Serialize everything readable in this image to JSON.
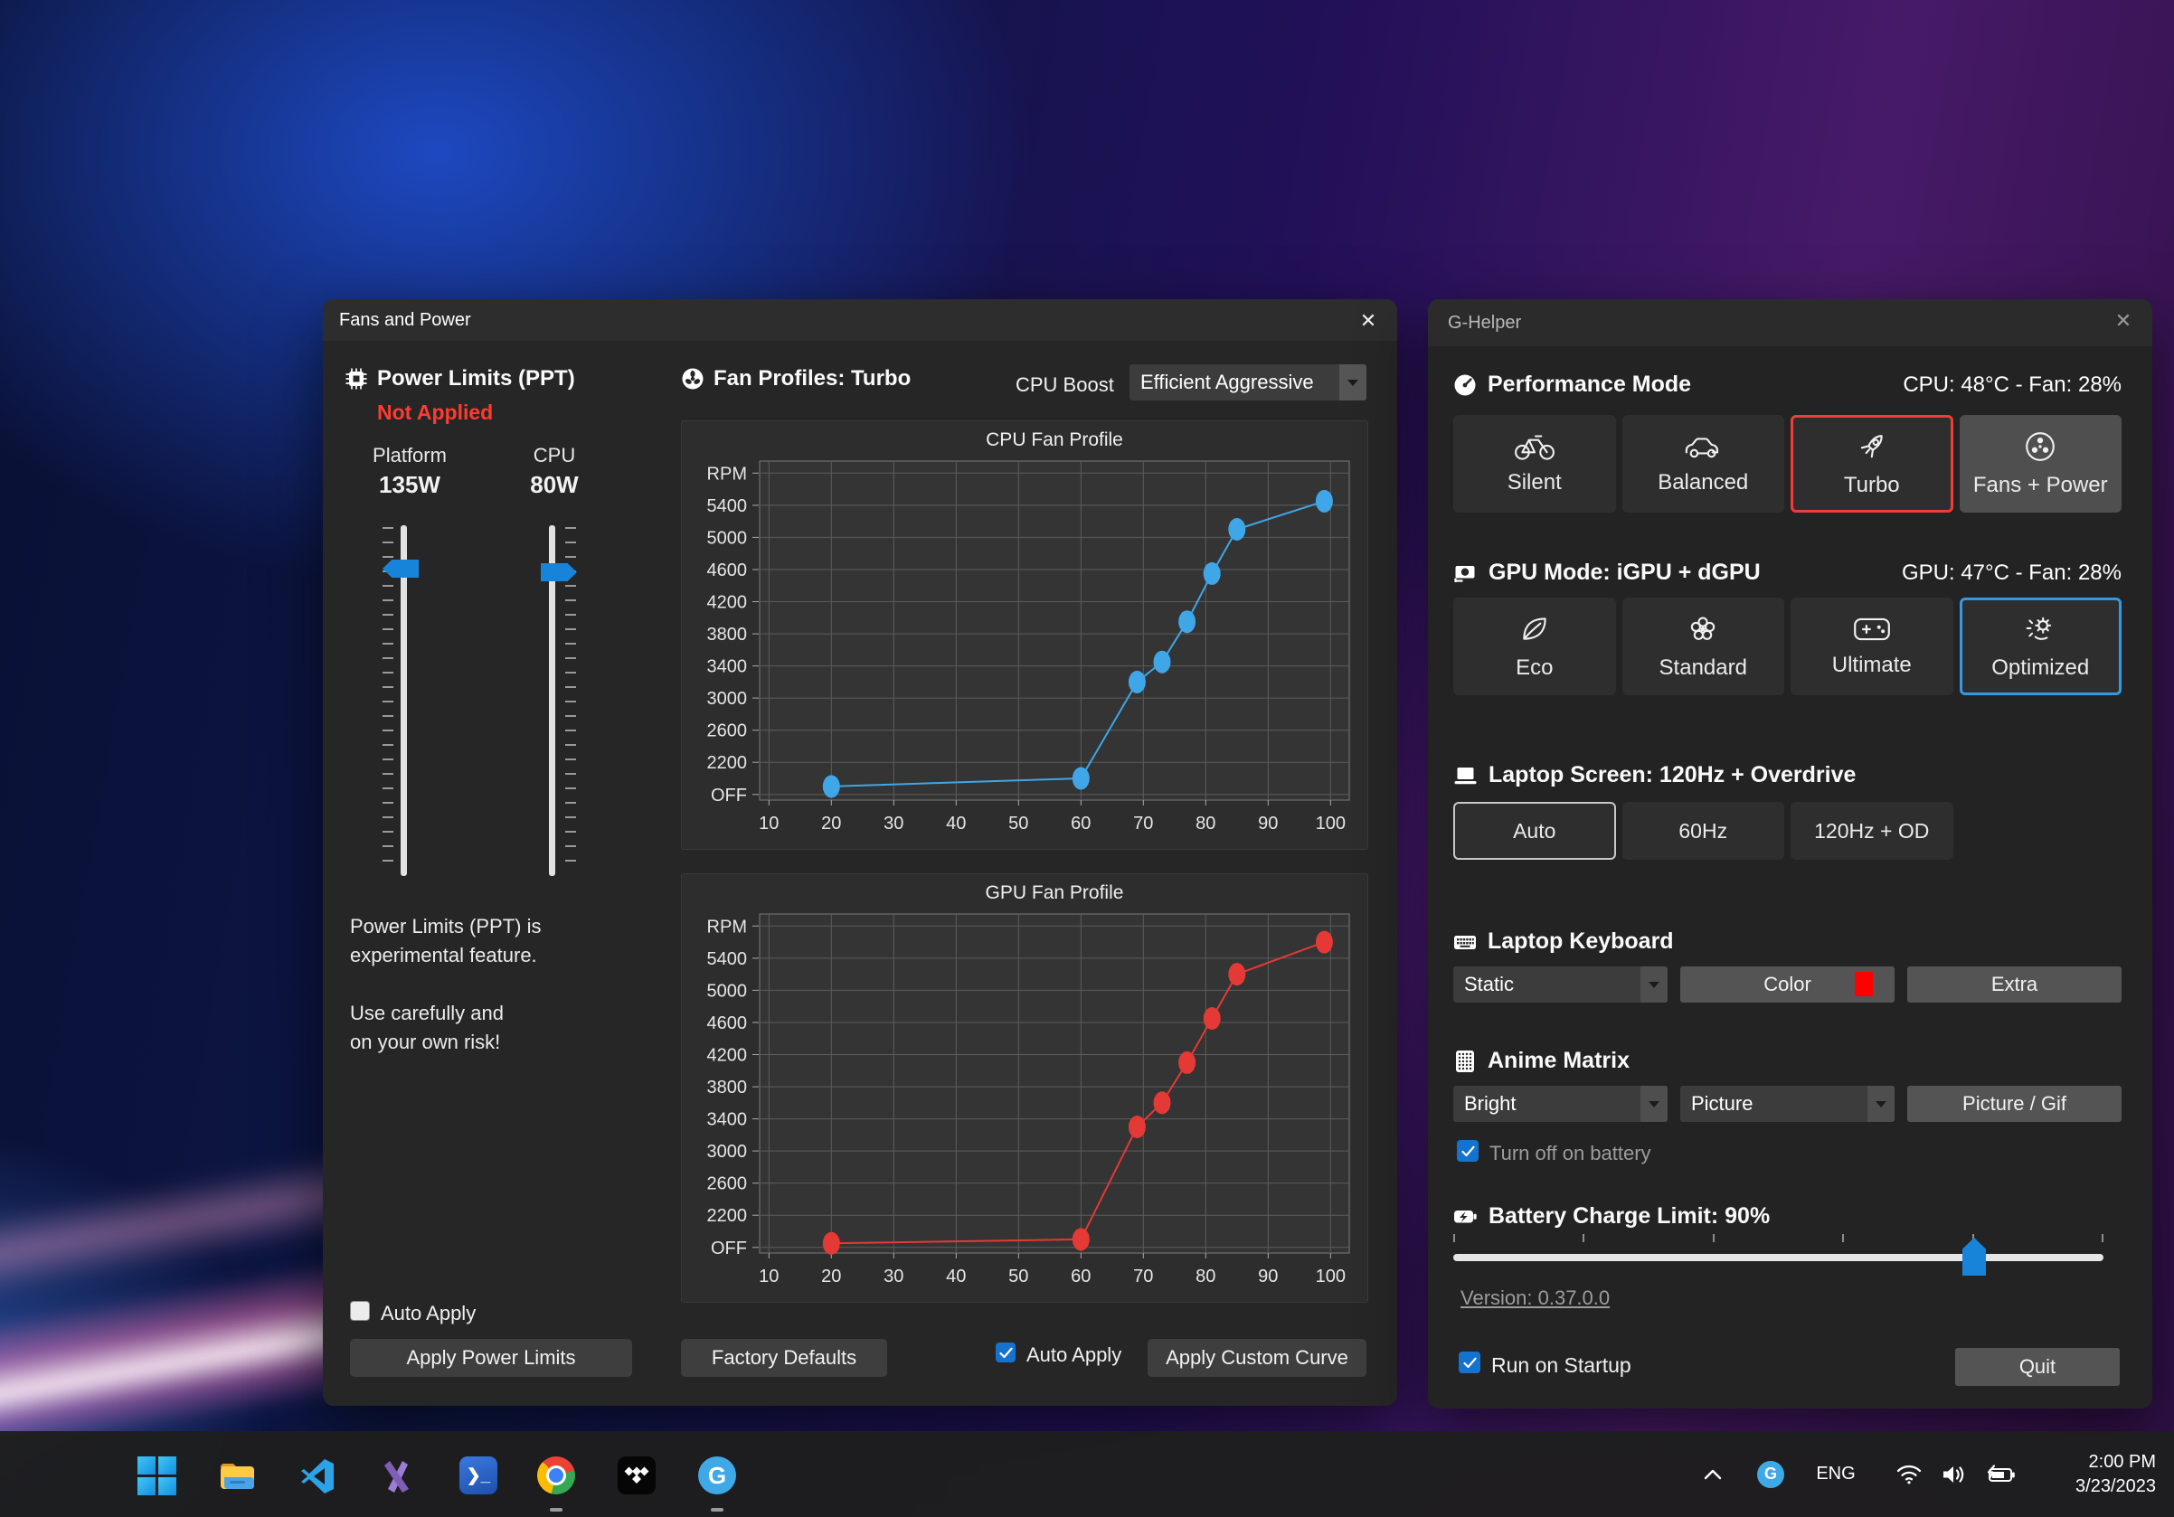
{
  "fans_window": {
    "title": "Fans and Power",
    "close_glyph": "✕",
    "power_limits": {
      "heading": "Power Limits (PPT)",
      "status": "Not Applied",
      "sliders": [
        {
          "label": "Platform",
          "value": "135W"
        },
        {
          "label": "CPU",
          "value": "80W"
        }
      ],
      "note": [
        "Power Limits (PPT) is",
        "experimental feature.",
        "",
        "Use carefully and",
        "on your own risk!"
      ],
      "auto_apply_label": "Auto Apply",
      "apply_button": "Apply Power Limits"
    },
    "fan_profiles": {
      "heading": "Fan Profiles: Turbo",
      "cpu_boost_label": "CPU Boost",
      "cpu_boost_value": "Efficient Aggressive",
      "factory_defaults_button": "Factory Defaults",
      "auto_apply_label": "Auto Apply",
      "apply_curve_button": "Apply Custom Curve"
    }
  },
  "chart_data": [
    {
      "type": "line",
      "title": "CPU Fan Profile",
      "xlabel": "",
      "ylabel": "RPM",
      "x_axis": {
        "ticks": [
          10,
          20,
          30,
          40,
          50,
          60,
          70,
          80,
          90,
          100
        ],
        "min": 8.5,
        "max": 103
      },
      "y_axis": {
        "tick_labels": [
          "OFF",
          "2200",
          "2600",
          "3000",
          "3400",
          "3800",
          "4200",
          "4600",
          "5000",
          "5400",
          "RPM"
        ],
        "tick_values": [
          1800,
          2200,
          2600,
          3000,
          3400,
          3800,
          4200,
          4600,
          5000,
          5400,
          5800
        ],
        "min": 1730,
        "max": 5950
      },
      "series": [
        {
          "name": "CPU fan curve",
          "color": "#3fa6e8",
          "points": [
            [
              20,
              1900
            ],
            [
              60,
              2000
            ],
            [
              69,
              3200
            ],
            [
              73,
              3450
            ],
            [
              77,
              3950
            ],
            [
              81,
              4550
            ],
            [
              85,
              5100
            ],
            [
              99,
              5450
            ]
          ]
        }
      ]
    },
    {
      "type": "line",
      "title": "GPU Fan Profile",
      "xlabel": "",
      "ylabel": "RPM",
      "x_axis": {
        "ticks": [
          10,
          20,
          30,
          40,
          50,
          60,
          70,
          80,
          90,
          100
        ],
        "min": 8.5,
        "max": 103
      },
      "y_axis": {
        "tick_labels": [
          "OFF",
          "2200",
          "2600",
          "3000",
          "3400",
          "3800",
          "4200",
          "4600",
          "5000",
          "5400",
          "RPM"
        ],
        "tick_values": [
          1800,
          2200,
          2600,
          3000,
          3400,
          3800,
          4200,
          4600,
          5000,
          5400,
          5800
        ],
        "min": 1730,
        "max": 5950
      },
      "series": [
        {
          "name": "GPU fan curve",
          "color": "#e53935",
          "points": [
            [
              20,
              1850
            ],
            [
              60,
              1900
            ],
            [
              69,
              3300
            ],
            [
              73,
              3600
            ],
            [
              77,
              4100
            ],
            [
              81,
              4650
            ],
            [
              85,
              5200
            ],
            [
              99,
              5600
            ]
          ]
        }
      ]
    }
  ],
  "ghelper_window": {
    "title": "G-Helper",
    "close_glyph": "✕",
    "performance": {
      "heading": "Performance Mode",
      "status": "CPU: 48°C -  Fan: 28%",
      "buttons": [
        {
          "label": "Silent",
          "icon": "bicycle-icon"
        },
        {
          "label": "Balanced",
          "icon": "car-icon"
        },
        {
          "label": "Turbo",
          "icon": "rocket-icon",
          "selected": true
        },
        {
          "label": "Fans + Power",
          "icon": "fan-icon"
        }
      ]
    },
    "gpu": {
      "heading": "GPU Mode: iGPU + dGPU",
      "status": "GPU: 47°C -  Fan: 28%",
      "buttons": [
        {
          "label": "Eco",
          "icon": "leaf-icon"
        },
        {
          "label": "Standard",
          "icon": "flower-icon"
        },
        {
          "label": "Ultimate",
          "icon": "gamepad-icon"
        },
        {
          "label": "Optimized",
          "icon": "gear-spark-icon",
          "selected": true
        }
      ]
    },
    "screen": {
      "heading": "Laptop Screen: 120Hz + Overdrive",
      "buttons": [
        {
          "label": "Auto",
          "selected": true
        },
        {
          "label": "60Hz"
        },
        {
          "label": "120Hz + OD"
        }
      ]
    },
    "keyboard": {
      "heading": "Laptop Keyboard",
      "mode_dropdown": "Static",
      "color_button": "Color",
      "color_swatch": "#ff0000",
      "extra_button": "Extra"
    },
    "matrix": {
      "heading": "Anime Matrix",
      "brightness_dropdown": "Bright",
      "content_dropdown": "Picture",
      "picture_button": "Picture / Gif",
      "battery_checkbox_label": "Turn off on battery",
      "battery_checkbox_checked": true
    },
    "battery": {
      "heading": "Battery Charge Limit: 90%",
      "value_percent": 90,
      "thumb_position_percent": 80
    },
    "version_link": "Version: 0.37.0.0",
    "startup_checkbox_label": "Run on Startup",
    "startup_checkbox_checked": true,
    "quit_button": "Quit"
  },
  "taskbar": {
    "apps": [
      "start",
      "file-explorer",
      "vscode",
      "visual-studio",
      "terminal",
      "chrome",
      "tidal",
      "g-helper"
    ],
    "running_apps": [
      "chrome",
      "g-helper"
    ],
    "tray": {
      "language": "ENG",
      "time": "2:00 PM",
      "date": "3/23/2023",
      "ghelper_letter": "G"
    }
  }
}
